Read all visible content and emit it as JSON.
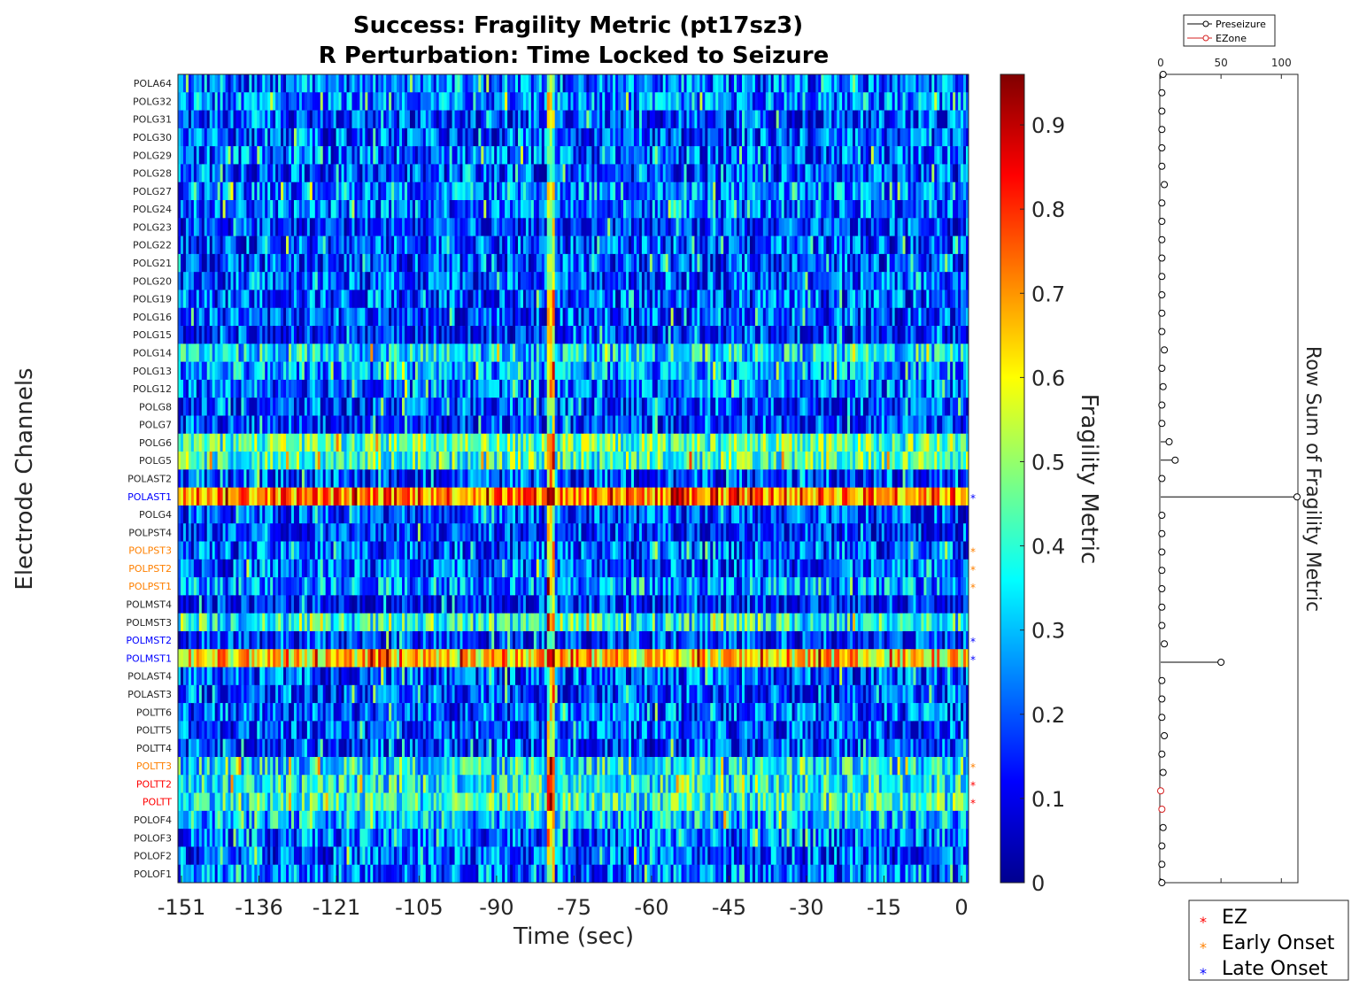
{
  "title_line1": "Success: Fragility Metric (pt17sz3)",
  "title_line2": "R Perturbation:  Time Locked to Seizure",
  "chart_data": [
    {
      "type": "heatmap",
      "xlabel": "Time (sec)",
      "ylabel": "Electrode Channels",
      "x_ticks": [
        "-151",
        "-136",
        "-121",
        "-105",
        "-90",
        "-75",
        "-60",
        "-45",
        "-30",
        "-15",
        "0"
      ],
      "x_range": [
        -151,
        0
      ],
      "channels": [
        {
          "name": "POLA64",
          "mean": 0.22,
          "status": ""
        },
        {
          "name": "POLG32",
          "mean": 0.24,
          "status": ""
        },
        {
          "name": "POLG31",
          "mean": 0.17,
          "status": ""
        },
        {
          "name": "POLG30",
          "mean": 0.19,
          "status": ""
        },
        {
          "name": "POLG29",
          "mean": 0.21,
          "status": ""
        },
        {
          "name": "POLG28",
          "mean": 0.17,
          "status": ""
        },
        {
          "name": "POLG27",
          "mean": 0.24,
          "status": ""
        },
        {
          "name": "POLG24",
          "mean": 0.22,
          "status": ""
        },
        {
          "name": "POLG23",
          "mean": 0.15,
          "status": ""
        },
        {
          "name": "POLG22",
          "mean": 0.18,
          "status": ""
        },
        {
          "name": "POLG21",
          "mean": 0.17,
          "status": ""
        },
        {
          "name": "POLG20",
          "mean": 0.19,
          "status": ""
        },
        {
          "name": "POLG19",
          "mean": 0.2,
          "status": ""
        },
        {
          "name": "POLG16",
          "mean": 0.18,
          "status": ""
        },
        {
          "name": "POLG15",
          "mean": 0.13,
          "status": ""
        },
        {
          "name": "POLG14",
          "mean": 0.33,
          "status": ""
        },
        {
          "name": "POLG13",
          "mean": 0.26,
          "status": ""
        },
        {
          "name": "POLG12",
          "mean": 0.22,
          "status": ""
        },
        {
          "name": "POLG8",
          "mean": 0.16,
          "status": ""
        },
        {
          "name": "POLG7",
          "mean": 0.14,
          "status": ""
        },
        {
          "name": "POLG6",
          "mean": 0.44,
          "status": ""
        },
        {
          "name": "POLG5",
          "mean": 0.42,
          "status": ""
        },
        {
          "name": "POLAST2",
          "mean": 0.17,
          "status": ""
        },
        {
          "name": "POLAST1",
          "mean": 0.72,
          "status": "late"
        },
        {
          "name": "POLG4",
          "mean": 0.17,
          "status": ""
        },
        {
          "name": "POLPST4",
          "mean": 0.14,
          "status": ""
        },
        {
          "name": "POLPST3",
          "mean": 0.2,
          "status": "early"
        },
        {
          "name": "POLPST2",
          "mean": 0.2,
          "status": "early"
        },
        {
          "name": "POLPST1",
          "mean": 0.26,
          "status": "early"
        },
        {
          "name": "POLMST4",
          "mean": 0.13,
          "status": ""
        },
        {
          "name": "POLMST3",
          "mean": 0.37,
          "status": ""
        },
        {
          "name": "POLMST2",
          "mean": 0.15,
          "status": "late"
        },
        {
          "name": "POLMST1",
          "mean": 0.62,
          "status": "late"
        },
        {
          "name": "POLAST4",
          "mean": 0.19,
          "status": ""
        },
        {
          "name": "POLAST3",
          "mean": 0.16,
          "status": ""
        },
        {
          "name": "POLTT6",
          "mean": 0.2,
          "status": ""
        },
        {
          "name": "POLTT5",
          "mean": 0.18,
          "status": ""
        },
        {
          "name": "POLTT4",
          "mean": 0.17,
          "status": ""
        },
        {
          "name": "POLTT3",
          "mean": 0.35,
          "status": "early"
        },
        {
          "name": "POLTT2",
          "mean": 0.37,
          "status": "ez"
        },
        {
          "name": "POLTT",
          "mean": 0.39,
          "status": "ez"
        },
        {
          "name": "POLOF4",
          "mean": 0.3,
          "status": ""
        },
        {
          "name": "POLOF3",
          "mean": 0.22,
          "status": ""
        },
        {
          "name": "POLOF2",
          "mean": 0.2,
          "status": ""
        },
        {
          "name": "POLOF1",
          "mean": 0.22,
          "status": ""
        }
      ],
      "colorbar": {
        "label": "Fragility Metric",
        "range": [
          0,
          0.96
        ],
        "ticks": [
          "0",
          "0.1",
          "0.2",
          "0.3",
          "0.4",
          "0.5",
          "0.6",
          "0.7",
          "0.8",
          "0.9"
        ],
        "colormap": "jet"
      }
    },
    {
      "type": "scatter",
      "orientation": "horizontal-stem",
      "xlabel": "Row Sum of Fragility Metric",
      "x_ticks": [
        "0",
        "50",
        "100"
      ],
      "x_range": [
        0,
        113
      ],
      "legend": [
        "Preseizure",
        "EZone"
      ],
      "values": [
        2,
        1,
        1,
        1,
        1,
        1,
        3,
        1,
        1,
        1,
        1,
        1,
        1,
        1,
        1,
        3,
        1,
        2,
        1,
        1,
        7,
        12,
        1,
        113,
        1,
        1,
        1,
        1,
        1,
        1,
        1,
        3,
        50,
        1,
        1,
        1,
        3,
        1,
        2,
        0,
        1,
        2,
        1,
        1,
        1
      ],
      "ezone_rows": [
        39,
        40
      ]
    }
  ],
  "legend_markers": {
    "items": [
      {
        "label": "EZ",
        "color": "#ff0000"
      },
      {
        "label": "Early Onset",
        "color": "#ff8000"
      },
      {
        "label": "Late Onset",
        "color": "#0000ff"
      }
    ]
  },
  "colors": {
    "ez": "#ff0000",
    "early": "#ff8000",
    "late": "#0000ff",
    "normal": "#262626",
    "preseizure": "#000000",
    "ezone": "#d62020"
  }
}
